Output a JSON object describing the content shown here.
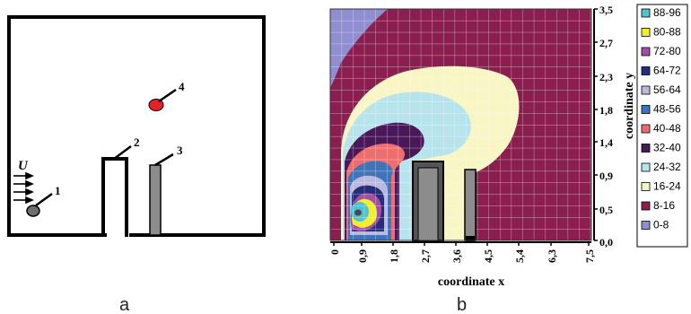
{
  "panel_a": {
    "label": "a",
    "flow_label": "U",
    "numbers": [
      "1",
      "2",
      "3",
      "4"
    ]
  },
  "panel_b": {
    "label": "b",
    "x_axis": {
      "title": "coordinate x",
      "ticks": [
        "0",
        "0,9",
        "1,8",
        "2,7",
        "3,6",
        "4,5",
        "5,4",
        "6,3",
        "7,5"
      ]
    },
    "y_axis": {
      "title": "coordinate y",
      "ticks": [
        "3,5",
        "2,7",
        "2,3",
        "1,8",
        "1,4",
        "0,9",
        "0,5",
        "0,0"
      ]
    },
    "legend": [
      {
        "label": "88-96",
        "color": "#4fc3d1"
      },
      {
        "label": "80-88",
        "color": "#f2ee2a"
      },
      {
        "label": "72-80",
        "color": "#a34fa3"
      },
      {
        "label": "64-72",
        "color": "#282c7c"
      },
      {
        "label": "56-64",
        "color": "#b9b9de"
      },
      {
        "label": "48-56",
        "color": "#3f74ba"
      },
      {
        "label": "40-48",
        "color": "#ee6e6e"
      },
      {
        "label": "32-40",
        "color": "#4a1858"
      },
      {
        "label": "24-32",
        "color": "#b7e3ec"
      },
      {
        "label": "16-24",
        "color": "#f8f6c4"
      },
      {
        "label": "8-16",
        "color": "#8a1f4f"
      },
      {
        "label": "0-8",
        "color": "#8e8ed0"
      }
    ]
  }
}
